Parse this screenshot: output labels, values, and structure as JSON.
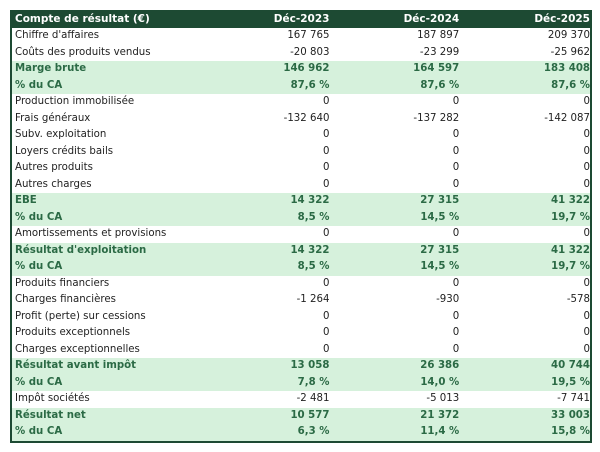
{
  "colors": {
    "header_bg": "#1d4a33",
    "highlight_bg": "#d6f1dc",
    "highlight_text": "#2b6a45"
  },
  "header": [
    "Compte de résultat (€)",
    "Déc-2023",
    "Déc-2024",
    "Déc-2025"
  ],
  "rows": [
    {
      "label": "Chiffre d'affaires",
      "values": [
        "167 765",
        "187 897",
        "209 370"
      ],
      "highlight": false
    },
    {
      "label": "Coûts des produits vendus",
      "values": [
        "-20 803",
        "-23 299",
        "-25 962"
      ],
      "highlight": false
    },
    {
      "label": "Marge brute",
      "values": [
        "146 962",
        "164 597",
        "183 408"
      ],
      "highlight": true
    },
    {
      "label": "% du CA",
      "values": [
        "87,6 %",
        "87,6 %",
        "87,6 %"
      ],
      "highlight": true
    },
    {
      "label": "Production immobilisée",
      "values": [
        "0",
        "0",
        "0"
      ],
      "highlight": false
    },
    {
      "label": "Frais généraux",
      "values": [
        "-132 640",
        "-137 282",
        "-142 087"
      ],
      "highlight": false
    },
    {
      "label": "Subv. exploitation",
      "values": [
        "0",
        "0",
        "0"
      ],
      "highlight": false
    },
    {
      "label": "Loyers crédits bails",
      "values": [
        "0",
        "0",
        "0"
      ],
      "highlight": false
    },
    {
      "label": "Autres produits",
      "values": [
        "0",
        "0",
        "0"
      ],
      "highlight": false
    },
    {
      "label": "Autres charges",
      "values": [
        "0",
        "0",
        "0"
      ],
      "highlight": false
    },
    {
      "label": "EBE",
      "values": [
        "14 322",
        "27 315",
        "41 322"
      ],
      "highlight": true
    },
    {
      "label": "% du CA",
      "values": [
        "8,5 %",
        "14,5 %",
        "19,7 %"
      ],
      "highlight": true
    },
    {
      "label": "Amortissements et provisions",
      "values": [
        "0",
        "0",
        "0"
      ],
      "highlight": false
    },
    {
      "label": "Résultat d'exploitation",
      "values": [
        "14 322",
        "27 315",
        "41 322"
      ],
      "highlight": true
    },
    {
      "label": "% du CA",
      "values": [
        "8,5 %",
        "14,5 %",
        "19,7 %"
      ],
      "highlight": true
    },
    {
      "label": "Produits financiers",
      "values": [
        "0",
        "0",
        "0"
      ],
      "highlight": false
    },
    {
      "label": "Charges financières",
      "values": [
        "-1 264",
        "-930",
        "-578"
      ],
      "highlight": false
    },
    {
      "label": "Profit (perte) sur cessions",
      "values": [
        "0",
        "0",
        "0"
      ],
      "highlight": false
    },
    {
      "label": "Produits exceptionnels",
      "values": [
        "0",
        "0",
        "0"
      ],
      "highlight": false
    },
    {
      "label": "Charges exceptionnelles",
      "values": [
        "0",
        "0",
        "0"
      ],
      "highlight": false
    },
    {
      "label": "Résultat avant impôt",
      "values": [
        "13 058",
        "26 386",
        "40 744"
      ],
      "highlight": true
    },
    {
      "label": "% du CA",
      "values": [
        "7,8 %",
        "14,0 %",
        "19,5 %"
      ],
      "highlight": true
    },
    {
      "label": "Impôt sociétés",
      "values": [
        "-2 481",
        "-5 013",
        "-7 741"
      ],
      "highlight": false
    },
    {
      "label": "Résultat net",
      "values": [
        "10 577",
        "21 372",
        "33 003"
      ],
      "highlight": true
    },
    {
      "label": "% du CA",
      "values": [
        "6,3 %",
        "11,4 %",
        "15,8 %"
      ],
      "highlight": true
    }
  ]
}
